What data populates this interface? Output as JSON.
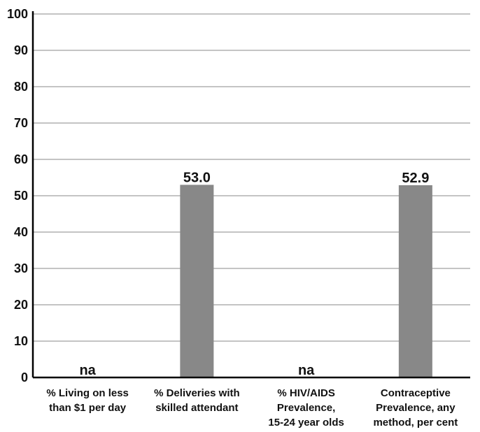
{
  "chart_data": {
    "type": "bar",
    "categories": [
      [
        "% Living on less",
        "than $1 per day"
      ],
      [
        "% Deliveries with",
        "skilled attendant"
      ],
      [
        "% HIV/AIDS",
        "Prevalence,",
        "15-24 year olds"
      ],
      [
        "Contraceptive",
        "Prevalence, any",
        "method, per cent"
      ]
    ],
    "values": [
      null,
      53.0,
      null,
      52.9
    ],
    "data_labels": [
      "na",
      "53.0",
      "na",
      "52.9"
    ],
    "ylim": [
      0,
      100
    ],
    "yticks": [
      0,
      10,
      20,
      30,
      40,
      50,
      60,
      70,
      80,
      90,
      100
    ],
    "grid": true,
    "bar_color": "#888888"
  }
}
